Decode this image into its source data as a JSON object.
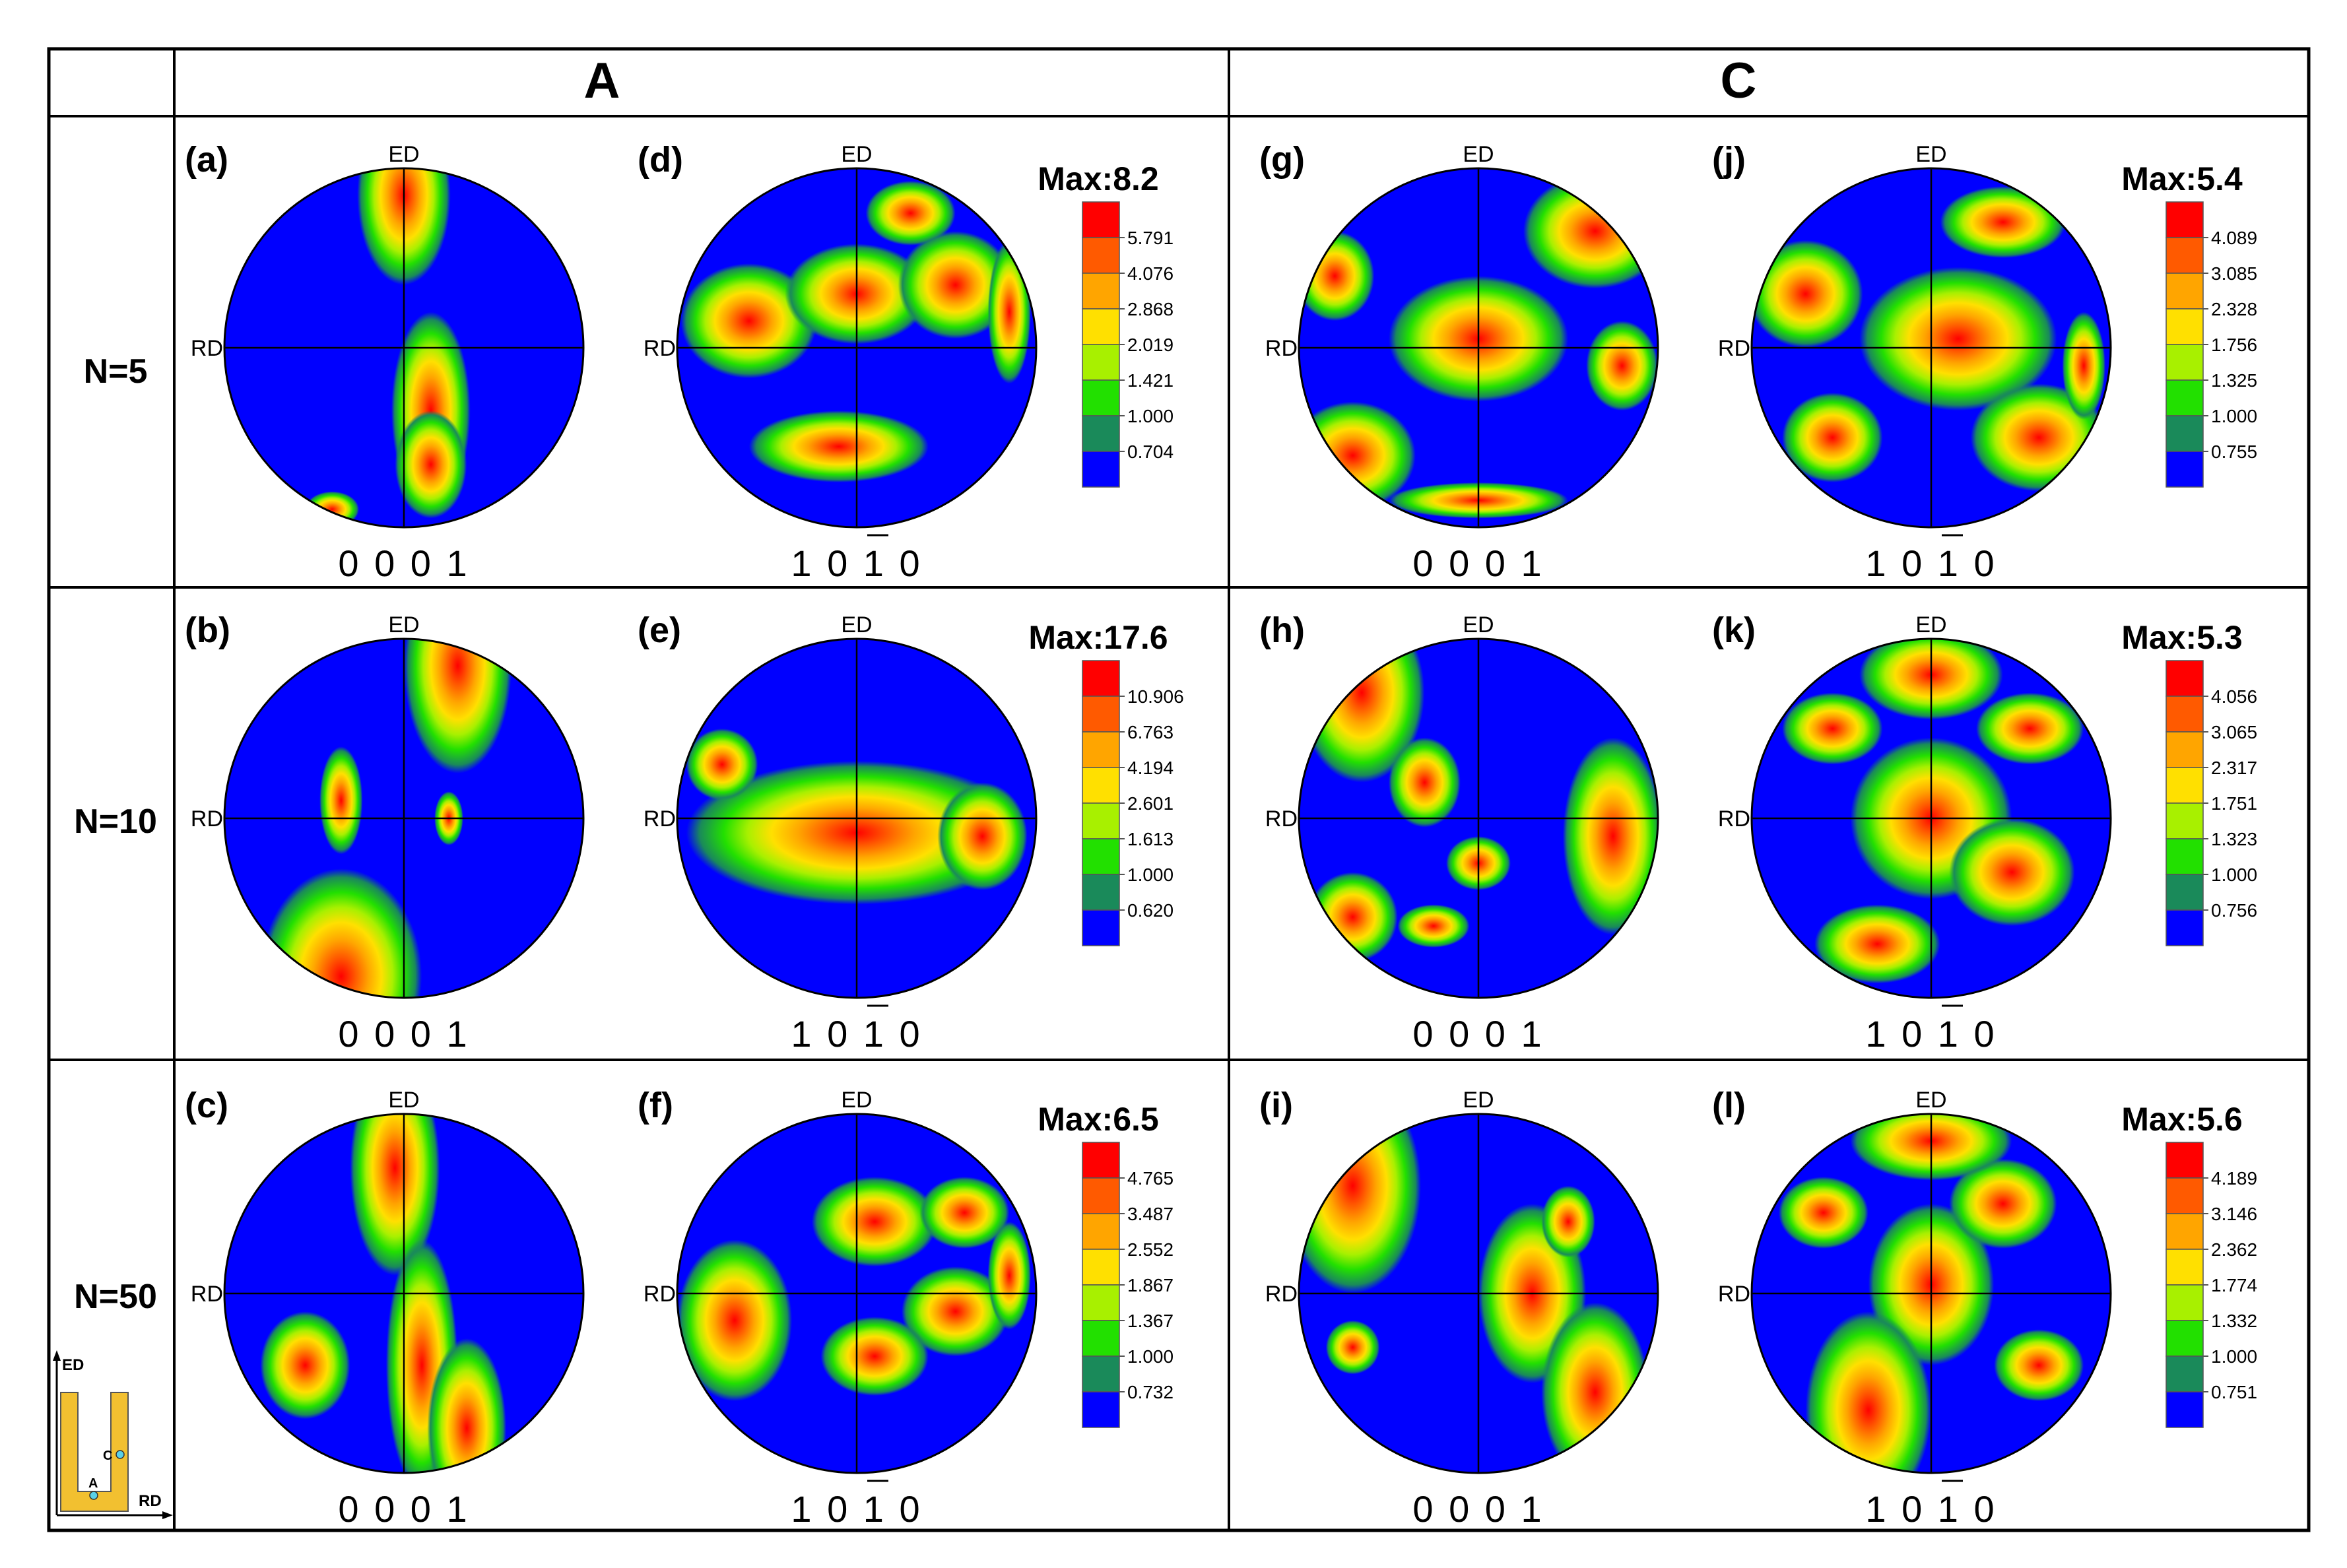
{
  "header": {
    "col_a": "A",
    "col_c": "C"
  },
  "rows": [
    {
      "label": "N=5"
    },
    {
      "label": "N=10"
    },
    {
      "label": "N=50"
    }
  ],
  "axis_labels": {
    "top": "ED",
    "left": "RD"
  },
  "pole_labels": {
    "basal": "0 0 0 1",
    "prism": "1 0 1 0"
  },
  "panels": [
    {
      "id": "a",
      "tag": "(a)",
      "pole": "basal"
    },
    {
      "id": "d",
      "tag": "(d)",
      "pole": "prism"
    },
    {
      "id": "g",
      "tag": "(g)",
      "pole": "basal"
    },
    {
      "id": "j",
      "tag": "(j)",
      "pole": "prism"
    },
    {
      "id": "b",
      "tag": "(b)",
      "pole": "basal"
    },
    {
      "id": "e",
      "tag": "(e)",
      "pole": "prism"
    },
    {
      "id": "h",
      "tag": "(h)",
      "pole": "basal"
    },
    {
      "id": "k",
      "tag": "(k)",
      "pole": "prism"
    },
    {
      "id": "c",
      "tag": "(c)",
      "pole": "basal"
    },
    {
      "id": "f",
      "tag": "(f)",
      "pole": "prism"
    },
    {
      "id": "i",
      "tag": "(i)",
      "pole": "basal"
    },
    {
      "id": "l",
      "tag": "(l)",
      "pole": "prism"
    }
  ],
  "legends": [
    {
      "max": "Max:8.2",
      "levels": [
        "5.791",
        "4.076",
        "2.868",
        "2.019",
        "1.421",
        "1.000",
        "0.704"
      ]
    },
    {
      "max": "Max:5.4",
      "levels": [
        "4.089",
        "3.085",
        "2.328",
        "1.756",
        "1.325",
        "1.000",
        "0.755"
      ]
    },
    {
      "max": "Max:17.6",
      "levels": [
        "10.906",
        "6.763",
        "4.194",
        "2.601",
        "1.613",
        "1.000",
        "0.620"
      ]
    },
    {
      "max": "Max:5.3",
      "levels": [
        "4.056",
        "3.065",
        "2.317",
        "1.751",
        "1.323",
        "1.000",
        "0.756"
      ]
    },
    {
      "max": "Max:6.5",
      "levels": [
        "4.765",
        "3.487",
        "2.552",
        "1.867",
        "1.367",
        "1.000",
        "0.732"
      ]
    },
    {
      "max": "Max:5.6",
      "levels": [
        "4.189",
        "3.146",
        "2.362",
        "1.774",
        "1.332",
        "1.000",
        "0.751"
      ]
    }
  ],
  "scale_colors": [
    "#ff0000",
    "#ff5a00",
    "#ffa500",
    "#ffe000",
    "#a8f000",
    "#22e000",
    "#1a8a5a",
    "#0000ff"
  ],
  "schematic": {
    "axis_up": "ED",
    "axis_right": "RD",
    "point_a": "A",
    "point_c": "C"
  },
  "panel_blobs": {
    "a": [
      [
        0.0,
        -0.85,
        0.26,
        0.5
      ],
      [
        0.15,
        0.35,
        0.22,
        0.55
      ],
      [
        0.15,
        0.65,
        0.2,
        0.3
      ],
      [
        -0.4,
        0.9,
        0.15,
        0.1
      ]
    ],
    "d": [
      [
        -0.6,
        -0.15,
        0.38,
        0.32
      ],
      [
        0.0,
        -0.3,
        0.4,
        0.28
      ],
      [
        0.55,
        -0.35,
        0.32,
        0.3
      ],
      [
        0.85,
        -0.2,
        0.12,
        0.4
      ],
      [
        -0.1,
        0.55,
        0.5,
        0.2
      ],
      [
        0.3,
        -0.75,
        0.25,
        0.18
      ]
    ],
    "g": [
      [
        0.0,
        -0.05,
        0.5,
        0.35
      ],
      [
        0.65,
        -0.65,
        0.4,
        0.32
      ],
      [
        -0.7,
        0.6,
        0.35,
        0.3
      ],
      [
        -0.8,
        -0.4,
        0.22,
        0.25
      ],
      [
        0.8,
        0.1,
        0.2,
        0.25
      ],
      [
        0.0,
        0.85,
        0.5,
        0.1
      ]
    ],
    "j": [
      [
        0.15,
        -0.05,
        0.55,
        0.4
      ],
      [
        -0.7,
        -0.3,
        0.32,
        0.3
      ],
      [
        0.6,
        0.5,
        0.38,
        0.3
      ],
      [
        -0.55,
        0.5,
        0.28,
        0.25
      ],
      [
        0.4,
        -0.7,
        0.35,
        0.2
      ],
      [
        0.85,
        0.1,
        0.12,
        0.3
      ]
    ],
    "b": [
      [
        0.3,
        -0.85,
        0.3,
        0.6
      ],
      [
        -0.35,
        0.88,
        0.45,
        0.6
      ],
      [
        -0.35,
        -0.1,
        0.12,
        0.3
      ],
      [
        0.25,
        0.0,
        0.08,
        0.15
      ]
    ],
    "e": [
      [
        0.0,
        0.08,
        0.95,
        0.4
      ],
      [
        -0.75,
        -0.3,
        0.2,
        0.2
      ],
      [
        0.7,
        0.1,
        0.25,
        0.3
      ]
    ],
    "h": [
      [
        0.75,
        0.1,
        0.28,
        0.55
      ],
      [
        -0.65,
        -0.7,
        0.35,
        0.5
      ],
      [
        -0.3,
        -0.2,
        0.2,
        0.25
      ],
      [
        -0.7,
        0.55,
        0.25,
        0.25
      ],
      [
        0.0,
        0.25,
        0.18,
        0.15
      ],
      [
        -0.25,
        0.6,
        0.2,
        0.12
      ]
    ],
    "k": [
      [
        0.0,
        0.0,
        0.45,
        0.45
      ],
      [
        0.45,
        0.3,
        0.35,
        0.3
      ],
      [
        -0.3,
        0.7,
        0.35,
        0.22
      ],
      [
        0.55,
        -0.5,
        0.3,
        0.2
      ],
      [
        -0.55,
        -0.5,
        0.28,
        0.2
      ],
      [
        0.0,
        -0.8,
        0.4,
        0.25
      ]
    ],
    "c": [
      [
        -0.05,
        -0.7,
        0.25,
        0.6
      ],
      [
        0.1,
        0.4,
        0.2,
        0.7
      ],
      [
        -0.55,
        0.4,
        0.25,
        0.3
      ],
      [
        0.35,
        0.75,
        0.22,
        0.5
      ]
    ],
    "f": [
      [
        -0.68,
        0.15,
        0.32,
        0.45
      ],
      [
        0.1,
        -0.4,
        0.35,
        0.25
      ],
      [
        0.55,
        0.1,
        0.3,
        0.25
      ],
      [
        0.1,
        0.35,
        0.3,
        0.22
      ],
      [
        0.6,
        -0.45,
        0.25,
        0.2
      ],
      [
        0.85,
        -0.1,
        0.12,
        0.3
      ]
    ],
    "i": [
      [
        -0.7,
        -0.6,
        0.38,
        0.6
      ],
      [
        0.3,
        0.0,
        0.3,
        0.5
      ],
      [
        0.65,
        0.55,
        0.3,
        0.5
      ],
      [
        -0.7,
        0.3,
        0.15,
        0.15
      ],
      [
        0.5,
        -0.4,
        0.15,
        0.2
      ]
    ],
    "l": [
      [
        0.0,
        -0.05,
        0.35,
        0.45
      ],
      [
        -0.35,
        0.65,
        0.35,
        0.55
      ],
      [
        0.4,
        -0.5,
        0.3,
        0.25
      ],
      [
        -0.6,
        -0.45,
        0.25,
        0.2
      ],
      [
        0.6,
        0.4,
        0.25,
        0.2
      ],
      [
        0.0,
        -0.85,
        0.45,
        0.22
      ]
    ]
  }
}
